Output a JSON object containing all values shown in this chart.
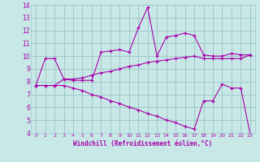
{
  "xlabel": "Windchill (Refroidissement éolien,°C)",
  "xlim": [
    -0.5,
    23.5
  ],
  "ylim": [
    4,
    14
  ],
  "xticks": [
    0,
    1,
    2,
    3,
    4,
    5,
    6,
    7,
    8,
    9,
    10,
    11,
    12,
    13,
    14,
    15,
    16,
    17,
    18,
    19,
    20,
    21,
    22,
    23
  ],
  "yticks": [
    4,
    5,
    6,
    7,
    8,
    9,
    10,
    11,
    12,
    13,
    14
  ],
  "background_color": "#c8e8e8",
  "grid_color": "#a0c8c8",
  "line_color": "#aa00aa",
  "line1_x": [
    0,
    1,
    2,
    3,
    4,
    5,
    6,
    7,
    8,
    9,
    10,
    11,
    12,
    13,
    14,
    15,
    16,
    17,
    18,
    19,
    20,
    21,
    22,
    23
  ],
  "line1_y": [
    7.7,
    9.8,
    9.8,
    8.2,
    8.1,
    8.1,
    8.1,
    10.3,
    10.4,
    10.5,
    10.3,
    12.2,
    13.8,
    10.0,
    11.5,
    11.6,
    11.8,
    11.6,
    10.1,
    10.0,
    10.0,
    10.2,
    10.1,
    10.1
  ],
  "line2_x": [
    0,
    1,
    2,
    3,
    4,
    5,
    6,
    7,
    8,
    9,
    10,
    11,
    12,
    13,
    14,
    15,
    16,
    17,
    18,
    19,
    20,
    21,
    22,
    23
  ],
  "line2_y": [
    7.7,
    7.7,
    7.7,
    8.2,
    8.2,
    8.3,
    8.5,
    8.7,
    8.8,
    9.0,
    9.2,
    9.3,
    9.5,
    9.6,
    9.7,
    9.8,
    9.9,
    10.0,
    9.8,
    9.8,
    9.8,
    9.8,
    9.8,
    10.1
  ],
  "line3_x": [
    0,
    1,
    2,
    3,
    4,
    5,
    6,
    7,
    8,
    9,
    10,
    11,
    12,
    13,
    14,
    15,
    16,
    17,
    18,
    19,
    20,
    21,
    22,
    23
  ],
  "line3_y": [
    7.7,
    7.7,
    7.7,
    7.7,
    7.5,
    7.3,
    7.0,
    6.8,
    6.5,
    6.3,
    6.0,
    5.8,
    5.5,
    5.3,
    5.0,
    4.8,
    4.5,
    4.3,
    6.5,
    6.5,
    7.8,
    7.5,
    7.5,
    3.9
  ]
}
